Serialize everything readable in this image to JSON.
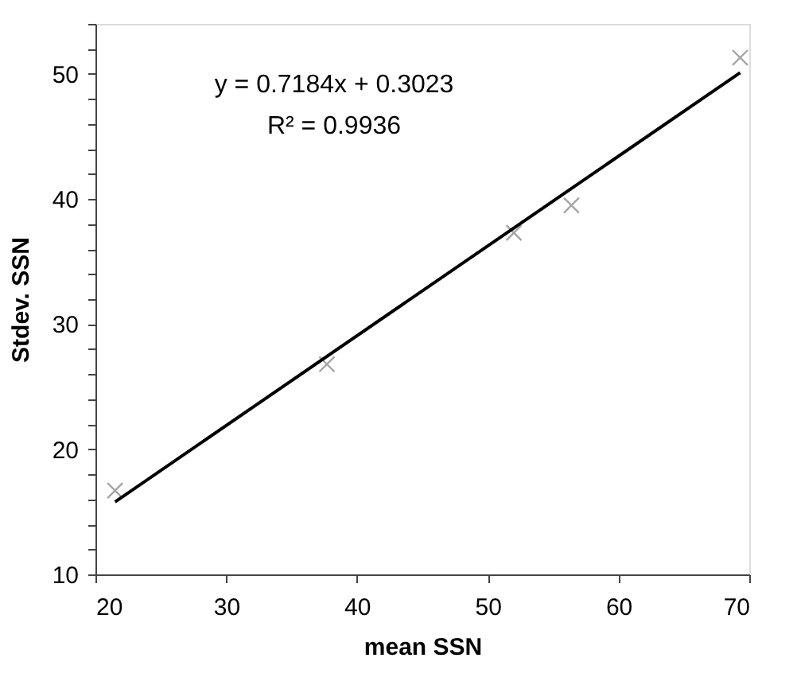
{
  "chart_data": {
    "type": "scatter",
    "xlabel": "mean SSN",
    "ylabel": "Stdev. SSN",
    "series": [
      {
        "color": "#808080",
        "marker": "cross",
        "x": [
          21.5,
          37.7,
          52.0,
          56.4,
          69.3
        ],
        "values": [
          16.7,
          26.8,
          37.3,
          39.5,
          51.3
        ]
      },
      {
        "type": "line",
        "color": "#000000",
        "marker": "none",
        "line_style": "solid",
        "x": [
          21.5,
          69.3
        ],
        "values": [
          15.8,
          50.1
        ]
      }
    ],
    "annotations": [
      "y = 0.7184x + 0.3023",
      "R² = 0.9936"
    ],
    "xlim": [
      20,
      70
    ],
    "xticks": [
      20,
      30,
      40,
      50,
      60,
      70
    ],
    "ylim": [
      10,
      54
    ],
    "yticks": [
      10,
      {
        "value": 12,
        "label": null
      },
      {
        "value": 14,
        "label": null
      },
      {
        "value": 16,
        "label": null
      },
      {
        "value": 18,
        "label": null
      },
      20,
      {
        "value": 22,
        "label": null
      },
      {
        "value": 24,
        "label": null
      },
      {
        "value": 26,
        "label": null
      },
      {
        "value": 28,
        "label": null
      },
      30,
      {
        "value": 32,
        "label": null
      },
      {
        "value": 34,
        "label": null
      },
      {
        "value": 36,
        "label": null
      },
      {
        "value": 38,
        "label": null
      },
      40,
      {
        "value": 42,
        "label": null
      },
      {
        "value": 44,
        "label": null
      },
      {
        "value": 46,
        "label": null
      },
      {
        "value": 48,
        "label": null
      },
      50,
      {
        "value": 52,
        "label": null
      },
      {
        "value": 54,
        "label": null
      }
    ],
    "grid": false
  }
}
